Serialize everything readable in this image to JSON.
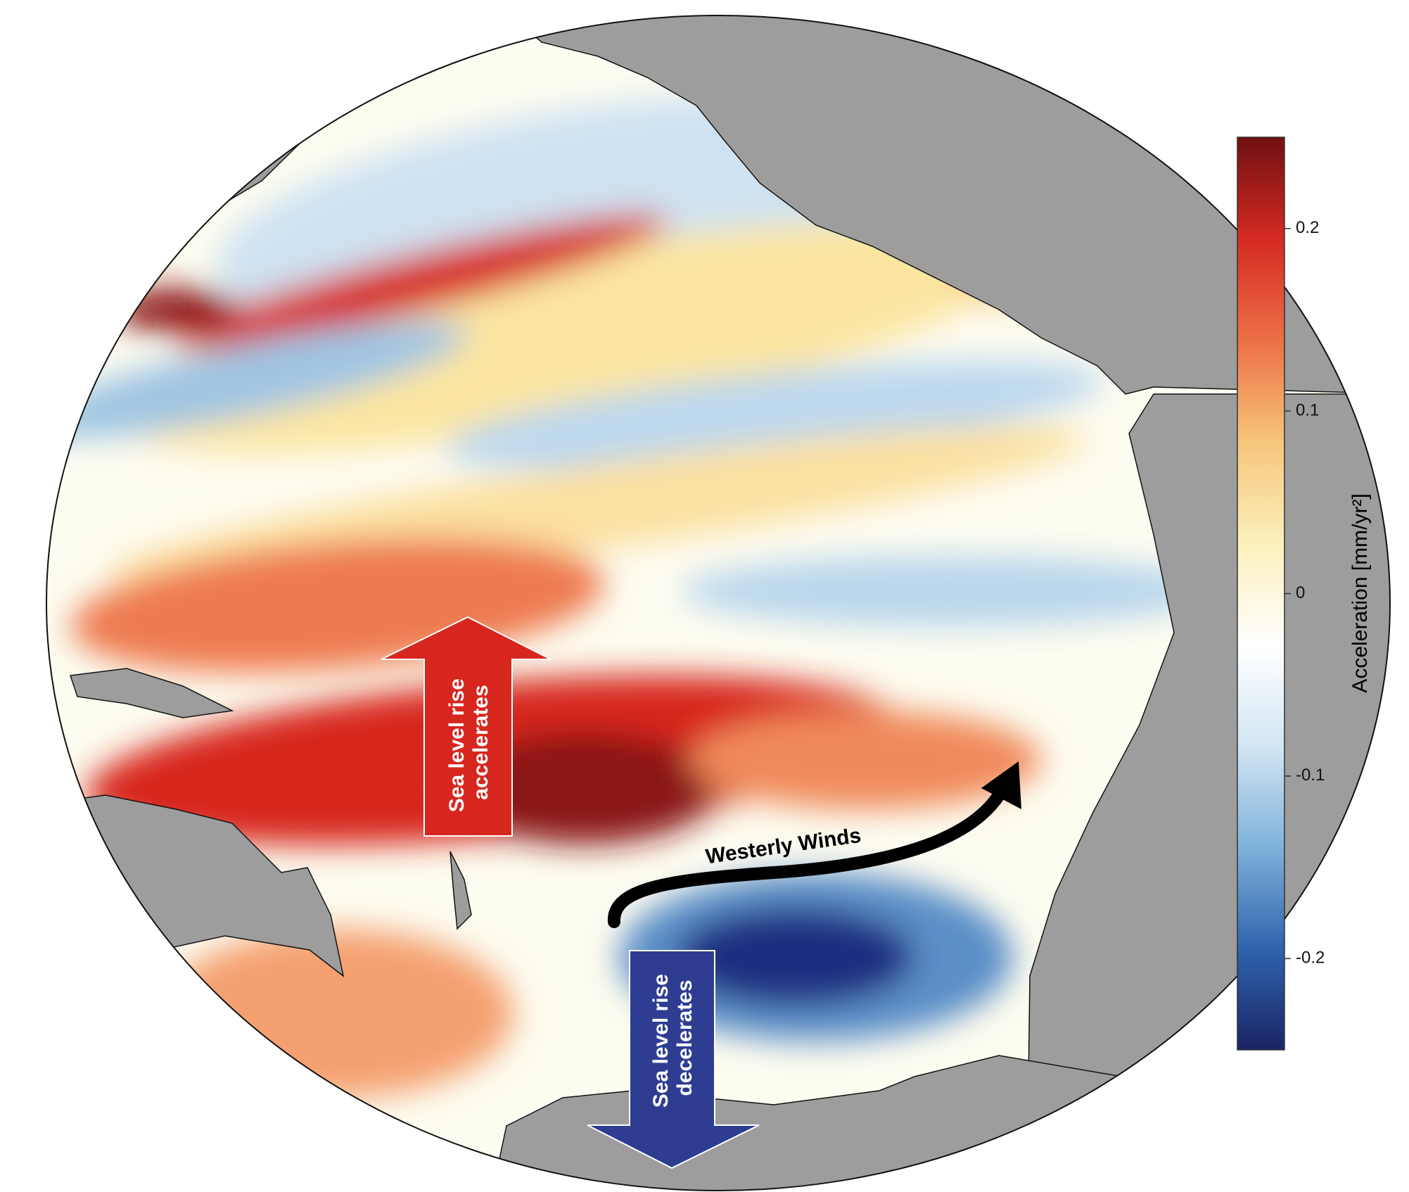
{
  "map": {
    "annotations": {
      "accelerates": [
        "Sea level rise",
        "accelerates"
      ],
      "decelerates": [
        "Sea level rise",
        "decelerates"
      ],
      "winds": "Westerly Winds"
    }
  },
  "chart_data": {
    "type": "colorbar",
    "label": "Acceleration [mm/yr²]",
    "ylim": [
      -0.25,
      0.25
    ],
    "yticks": [
      -0.2,
      -0.1,
      0,
      0.1,
      0.2
    ],
    "colors": [
      "#1a2565",
      "#2f64ad",
      "#7fb2da",
      "#d3e6f3",
      "#ffffff",
      "#fbf0bb",
      "#f6c57a",
      "#ec6f45",
      "#d42a22",
      "#701112"
    ]
  }
}
